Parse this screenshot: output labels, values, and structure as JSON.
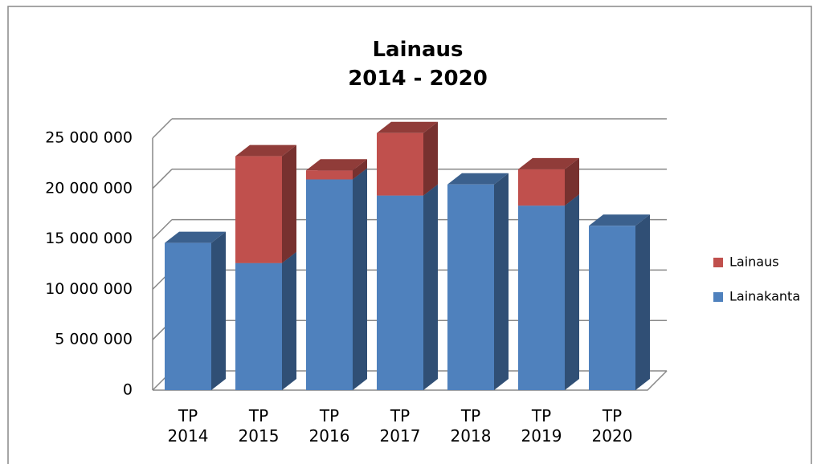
{
  "chart_data": {
    "type": "bar3d_stacked",
    "title": "Lainaus\n2014 - 2020",
    "categories": [
      "TP 2014",
      "TP 2015",
      "TP 2016",
      "TP 2017",
      "TP 2018",
      "TP 2019",
      "TP 2020"
    ],
    "series": [
      {
        "name": "Lainakanta",
        "color": "#4f81bd",
        "values": [
          14600000,
          12600000,
          20900000,
          19300000,
          20400000,
          18300000,
          16300000
        ]
      },
      {
        "name": "Lainaus",
        "color": "#c0504d",
        "values": [
          null,
          10600000,
          900000,
          6200000,
          null,
          3600000,
          null
        ]
      }
    ],
    "ylim": [
      0,
      25000000
    ],
    "yticks": [
      {
        "value": 0,
        "label": "0"
      },
      {
        "value": 5000000,
        "label": "5 000 000"
      },
      {
        "value": 10000000,
        "label": "10 000 000"
      },
      {
        "value": 15000000,
        "label": "15 000 000"
      },
      {
        "value": 20000000,
        "label": "20 000 000"
      },
      {
        "value": 25000000,
        "label": "25 000 000"
      }
    ],
    "grid": true,
    "stacked": true,
    "legend": "right"
  }
}
